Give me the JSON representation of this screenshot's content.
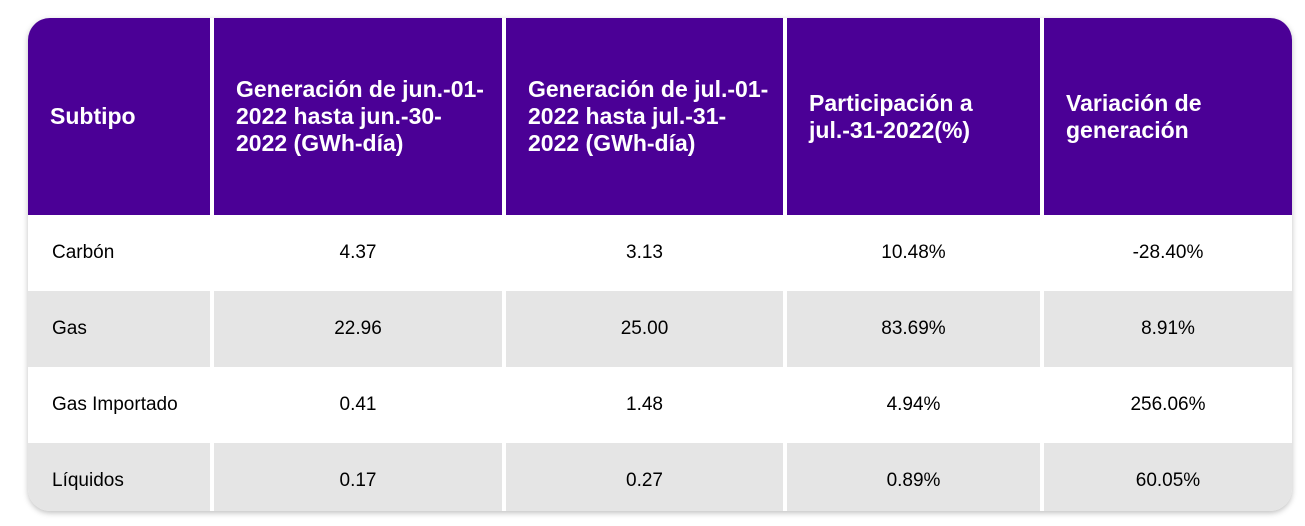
{
  "table": {
    "header": [
      "Subtipo",
      "Generación de jun.-01-2022 hasta jun.-30-2022 (GWh-día)",
      "Generación de jul.-01-2022 hasta jul.-31-2022 (GWh-día)",
      "Participación a jul.-31-2022(%)",
      "Variación de generación"
    ],
    "rows": [
      [
        "Carbón",
        "4.37",
        "3.13",
        "10.48%",
        "-28.40%"
      ],
      [
        "Gas",
        "22.96",
        "25.00",
        "83.69%",
        "8.91%"
      ],
      [
        "Gas Importado",
        "0.41",
        "1.48",
        "4.94%",
        "256.06%"
      ],
      [
        "Líquidos",
        "0.17",
        "0.27",
        "0.89%",
        "60.05%"
      ]
    ]
  }
}
